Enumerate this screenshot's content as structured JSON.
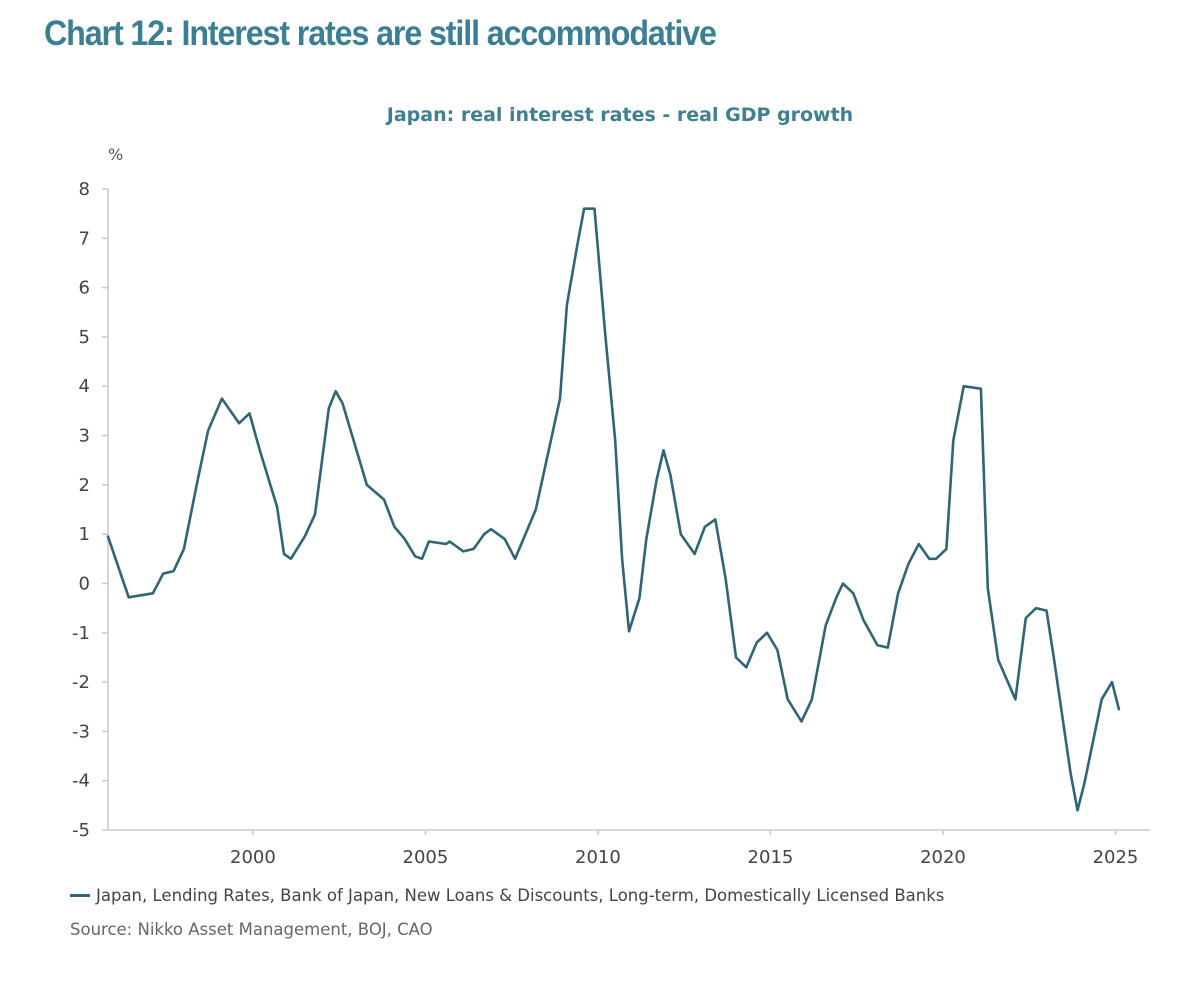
{
  "header": {
    "title": "Chart 12: Interest rates are still accommodative"
  },
  "chart_data": {
    "type": "line",
    "title": "Japan: real interest rates - real GDP growth",
    "ylabel": "%",
    "xlabel": "",
    "xlim": [
      1995.8,
      2026.0
    ],
    "ylim": [
      -5,
      8
    ],
    "yticks": [
      8,
      7,
      6,
      5,
      4,
      3,
      2,
      1,
      0,
      -1,
      -2,
      -3,
      -4,
      -5
    ],
    "xticks": [
      2000,
      2005,
      2010,
      2015,
      2020,
      2025
    ],
    "grid": false,
    "legend_position": "bottom",
    "series": [
      {
        "name": "Japan, Lending Rates, Bank of Japan, New Loans & Discounts, Long-term, Domestically Licensed Banks",
        "color": "#2f6577",
        "x": [
          1995.8,
          1996.4,
          1997.1,
          1997.4,
          1997.7,
          1998.0,
          1998.4,
          1998.7,
          1999.1,
          1999.6,
          1999.9,
          2000.2,
          2000.7,
          2000.9,
          2001.1,
          2001.5,
          2001.8,
          2002.2,
          2002.4,
          2002.6,
          2003.3,
          2003.8,
          2004.1,
          2004.4,
          2004.7,
          2004.9,
          2005.1,
          2005.6,
          2005.7,
          2006.1,
          2006.4,
          2006.7,
          2006.9,
          2007.3,
          2007.6,
          2008.2,
          2008.9,
          2009.1,
          2009.4,
          2009.6,
          2009.9,
          2010.2,
          2010.5,
          2010.7,
          2010.9,
          2011.2,
          2011.4,
          2011.7,
          2011.9,
          2012.1,
          2012.4,
          2012.8,
          2013.1,
          2013.4,
          2013.7,
          2014.0,
          2014.3,
          2014.6,
          2014.9,
          2015.2,
          2015.5,
          2015.9,
          2016.2,
          2016.6,
          2016.9,
          2017.1,
          2017.4,
          2017.7,
          2018.1,
          2018.4,
          2018.7,
          2019.0,
          2019.3,
          2019.6,
          2019.8,
          2020.1,
          2020.3,
          2020.6,
          2021.1,
          2021.3,
          2021.6,
          2022.1,
          2022.4,
          2022.7,
          2023.0,
          2023.2,
          2023.7,
          2023.9,
          2024.1,
          2024.6,
          2024.9,
          2025.1
        ],
        "y": [
          0.95,
          -0.28,
          -0.2,
          0.2,
          0.25,
          0.7,
          2.1,
          3.1,
          3.75,
          3.25,
          3.45,
          2.7,
          1.55,
          0.6,
          0.5,
          0.95,
          1.4,
          3.55,
          3.9,
          3.65,
          2.0,
          1.7,
          1.15,
          0.9,
          0.55,
          0.5,
          0.85,
          0.8,
          0.85,
          0.65,
          0.7,
          1.0,
          1.1,
          0.9,
          0.5,
          1.5,
          3.75,
          5.65,
          6.85,
          7.6,
          7.6,
          5.15,
          2.9,
          0.5,
          -0.97,
          -0.3,
          0.9,
          2.1,
          2.7,
          2.2,
          1.0,
          0.6,
          1.15,
          1.3,
          0.1,
          -1.5,
          -1.7,
          -1.2,
          -1.0,
          -1.35,
          -2.35,
          -2.8,
          -2.35,
          -0.85,
          -0.3,
          0.0,
          -0.2,
          -0.75,
          -1.25,
          -1.3,
          -0.2,
          0.4,
          0.8,
          0.5,
          0.5,
          0.7,
          2.9,
          4.0,
          3.95,
          -0.1,
          -1.55,
          -2.35,
          -0.7,
          -0.5,
          -0.55,
          -1.45,
          -3.85,
          -4.6,
          -4.05,
          -2.35,
          -2.0,
          -2.55
        ]
      }
    ],
    "legend": [
      "Japan, Lending Rates, Bank of Japan, New Loans & Discounts, Long-term, Domestically Licensed Banks"
    ],
    "source": "Source: Nikko Asset Management, BOJ, CAO"
  }
}
